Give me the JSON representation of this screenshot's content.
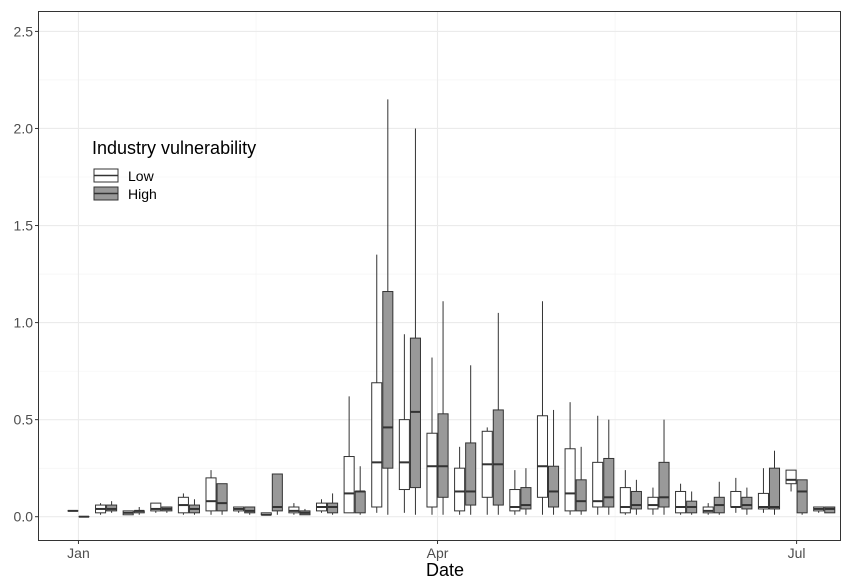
{
  "chart_data": {
    "type": "boxplot",
    "xlabel": "Date",
    "ylabel": "",
    "ylim": [
      -0.12,
      2.6
    ],
    "xlim": [
      "2019-12-22",
      "2020-07-12"
    ],
    "grid": true,
    "x_ticks": [
      {
        "date": "2020-01-01",
        "label": "Jan"
      },
      {
        "date": "2020-04-01",
        "label": "Apr"
      },
      {
        "date": "2020-07-01",
        "label": "Jul"
      }
    ],
    "y_ticks": [
      "0.0",
      "0.5",
      "1.0",
      "1.5",
      "2.0",
      "2.5"
    ],
    "legend": {
      "title": "Industry vulnerability",
      "position": "top-left inside",
      "entries": [
        {
          "name": "Low",
          "color": "#ffffff"
        },
        {
          "name": "High",
          "color": "#999999"
        }
      ]
    },
    "series": [
      {
        "name": "Low",
        "fill": "#ffffff",
        "boxes": [
          {
            "date": "2020-01-01",
            "min": 0.03,
            "q1": 0.03,
            "median": 0.03,
            "q3": 0.03,
            "max": 0.03
          },
          {
            "date": "2020-01-08",
            "min": 0.01,
            "q1": 0.02,
            "median": 0.04,
            "q3": 0.06,
            "max": 0.07
          },
          {
            "date": "2020-01-15",
            "min": 0.01,
            "q1": 0.01,
            "median": 0.02,
            "q3": 0.03,
            "max": 0.03
          },
          {
            "date": "2020-01-22",
            "min": 0.02,
            "q1": 0.03,
            "median": 0.04,
            "q3": 0.07,
            "max": 0.07
          },
          {
            "date": "2020-01-29",
            "min": 0.01,
            "q1": 0.02,
            "median": 0.06,
            "q3": 0.1,
            "max": 0.12
          },
          {
            "date": "2020-02-05",
            "min": 0.01,
            "q1": 0.03,
            "median": 0.08,
            "q3": 0.2,
            "max": 0.24
          },
          {
            "date": "2020-02-12",
            "min": 0.02,
            "q1": 0.03,
            "median": 0.04,
            "q3": 0.05,
            "max": 0.05
          },
          {
            "date": "2020-02-19",
            "min": 0.01,
            "q1": 0.01,
            "median": 0.01,
            "q3": 0.02,
            "max": 0.02
          },
          {
            "date": "2020-02-26",
            "min": 0.01,
            "q1": 0.02,
            "median": 0.03,
            "q3": 0.05,
            "max": 0.07
          },
          {
            "date": "2020-03-04",
            "min": 0.02,
            "q1": 0.03,
            "median": 0.05,
            "q3": 0.07,
            "max": 0.09
          },
          {
            "date": "2020-03-11",
            "min": 0.02,
            "q1": 0.02,
            "median": 0.12,
            "q3": 0.31,
            "max": 0.62
          },
          {
            "date": "2020-03-18",
            "min": 0.02,
            "q1": 0.05,
            "median": 0.28,
            "q3": 0.69,
            "max": 1.35
          },
          {
            "date": "2020-03-25",
            "min": 0.02,
            "q1": 0.14,
            "median": 0.28,
            "q3": 0.5,
            "max": 0.94
          },
          {
            "date": "2020-04-01",
            "min": 0.01,
            "q1": 0.05,
            "median": 0.26,
            "q3": 0.43,
            "max": 0.82
          },
          {
            "date": "2020-04-08",
            "min": 0.01,
            "q1": 0.03,
            "median": 0.13,
            "q3": 0.25,
            "max": 0.36
          },
          {
            "date": "2020-04-15",
            "min": 0.01,
            "q1": 0.1,
            "median": 0.27,
            "q3": 0.44,
            "max": 0.46
          },
          {
            "date": "2020-04-22",
            "min": 0.01,
            "q1": 0.03,
            "median": 0.05,
            "q3": 0.14,
            "max": 0.24
          },
          {
            "date": "2020-04-29",
            "min": 0.01,
            "q1": 0.1,
            "median": 0.26,
            "q3": 0.52,
            "max": 1.11
          },
          {
            "date": "2020-05-06",
            "min": 0.01,
            "q1": 0.03,
            "median": 0.12,
            "q3": 0.35,
            "max": 0.59
          },
          {
            "date": "2020-05-13",
            "min": 0.01,
            "q1": 0.05,
            "median": 0.08,
            "q3": 0.28,
            "max": 0.52
          },
          {
            "date": "2020-05-20",
            "min": 0.01,
            "q1": 0.02,
            "median": 0.05,
            "q3": 0.15,
            "max": 0.24
          },
          {
            "date": "2020-05-27",
            "min": 0.01,
            "q1": 0.04,
            "median": 0.06,
            "q3": 0.1,
            "max": 0.15
          },
          {
            "date": "2020-06-03",
            "min": 0.01,
            "q1": 0.02,
            "median": 0.05,
            "q3": 0.13,
            "max": 0.17
          },
          {
            "date": "2020-06-10",
            "min": 0.01,
            "q1": 0.02,
            "median": 0.03,
            "q3": 0.05,
            "max": 0.07
          },
          {
            "date": "2020-06-17",
            "min": 0.02,
            "q1": 0.05,
            "median": 0.05,
            "q3": 0.13,
            "max": 0.2
          },
          {
            "date": "2020-06-24",
            "min": 0.02,
            "q1": 0.04,
            "median": 0.05,
            "q3": 0.12,
            "max": 0.25
          },
          {
            "date": "2020-07-01",
            "min": 0.13,
            "q1": 0.17,
            "median": 0.19,
            "q3": 0.24,
            "max": 0.24
          },
          {
            "date": "2020-07-08",
            "min": 0.02,
            "q1": 0.03,
            "median": 0.04,
            "q3": 0.05,
            "max": 0.05
          }
        ]
      },
      {
        "name": "High",
        "fill": "#999999",
        "boxes": [
          {
            "date": "2020-01-01",
            "min": 0.0,
            "q1": 0.0,
            "median": 0.0,
            "q3": 0.0,
            "max": 0.0
          },
          {
            "date": "2020-01-08",
            "min": 0.02,
            "q1": 0.03,
            "median": 0.04,
            "q3": 0.06,
            "max": 0.08
          },
          {
            "date": "2020-01-15",
            "min": 0.01,
            "q1": 0.02,
            "median": 0.03,
            "q3": 0.03,
            "max": 0.05
          },
          {
            "date": "2020-01-22",
            "min": 0.02,
            "q1": 0.03,
            "median": 0.04,
            "q3": 0.05,
            "max": 0.05
          },
          {
            "date": "2020-01-29",
            "min": 0.01,
            "q1": 0.02,
            "median": 0.04,
            "q3": 0.06,
            "max": 0.09
          },
          {
            "date": "2020-02-05",
            "min": 0.01,
            "q1": 0.03,
            "median": 0.07,
            "q3": 0.17,
            "max": 0.17
          },
          {
            "date": "2020-02-12",
            "min": 0.01,
            "q1": 0.02,
            "median": 0.03,
            "q3": 0.05,
            "max": 0.05
          },
          {
            "date": "2020-02-19",
            "min": 0.01,
            "q1": 0.03,
            "median": 0.05,
            "q3": 0.22,
            "max": 0.22
          },
          {
            "date": "2020-02-26",
            "min": 0.01,
            "q1": 0.01,
            "median": 0.02,
            "q3": 0.03,
            "max": 0.04
          },
          {
            "date": "2020-03-04",
            "min": 0.01,
            "q1": 0.02,
            "median": 0.05,
            "q3": 0.07,
            "max": 0.12
          },
          {
            "date": "2020-03-11",
            "min": 0.01,
            "q1": 0.02,
            "median": 0.13,
            "q3": 0.13,
            "max": 0.26
          },
          {
            "date": "2020-03-18",
            "min": 0.01,
            "q1": 0.25,
            "median": 0.46,
            "q3": 1.16,
            "max": 2.15
          },
          {
            "date": "2020-03-25",
            "min": 0.01,
            "q1": 0.15,
            "median": 0.54,
            "q3": 0.92,
            "max": 2.0
          },
          {
            "date": "2020-04-01",
            "min": 0.01,
            "q1": 0.1,
            "median": 0.26,
            "q3": 0.53,
            "max": 1.11
          },
          {
            "date": "2020-04-08",
            "min": 0.01,
            "q1": 0.06,
            "median": 0.13,
            "q3": 0.38,
            "max": 0.78
          },
          {
            "date": "2020-04-15",
            "min": 0.01,
            "q1": 0.06,
            "median": 0.27,
            "q3": 0.55,
            "max": 1.05
          },
          {
            "date": "2020-04-22",
            "min": 0.01,
            "q1": 0.04,
            "median": 0.06,
            "q3": 0.15,
            "max": 0.25
          },
          {
            "date": "2020-04-29",
            "min": 0.01,
            "q1": 0.05,
            "median": 0.13,
            "q3": 0.26,
            "max": 0.55
          },
          {
            "date": "2020-05-06",
            "min": 0.01,
            "q1": 0.03,
            "median": 0.08,
            "q3": 0.19,
            "max": 0.36
          },
          {
            "date": "2020-05-13",
            "min": 0.01,
            "q1": 0.05,
            "median": 0.1,
            "q3": 0.3,
            "max": 0.5
          },
          {
            "date": "2020-05-20",
            "min": 0.01,
            "q1": 0.04,
            "median": 0.06,
            "q3": 0.13,
            "max": 0.19
          },
          {
            "date": "2020-05-27",
            "min": 0.01,
            "q1": 0.05,
            "median": 0.1,
            "q3": 0.28,
            "max": 0.5
          },
          {
            "date": "2020-06-03",
            "min": 0.01,
            "q1": 0.02,
            "median": 0.05,
            "q3": 0.08,
            "max": 0.13
          },
          {
            "date": "2020-06-10",
            "min": 0.01,
            "q1": 0.02,
            "median": 0.06,
            "q3": 0.1,
            "max": 0.18
          },
          {
            "date": "2020-06-17",
            "min": 0.01,
            "q1": 0.04,
            "median": 0.06,
            "q3": 0.1,
            "max": 0.15
          },
          {
            "date": "2020-06-24",
            "min": 0.01,
            "q1": 0.04,
            "median": 0.05,
            "q3": 0.25,
            "max": 0.34
          },
          {
            "date": "2020-07-01",
            "min": 0.01,
            "q1": 0.02,
            "median": 0.13,
            "q3": 0.19,
            "max": 0.19
          },
          {
            "date": "2020-07-08",
            "min": 0.02,
            "q1": 0.02,
            "median": 0.04,
            "q3": 0.05,
            "max": 0.05
          }
        ]
      }
    ]
  }
}
